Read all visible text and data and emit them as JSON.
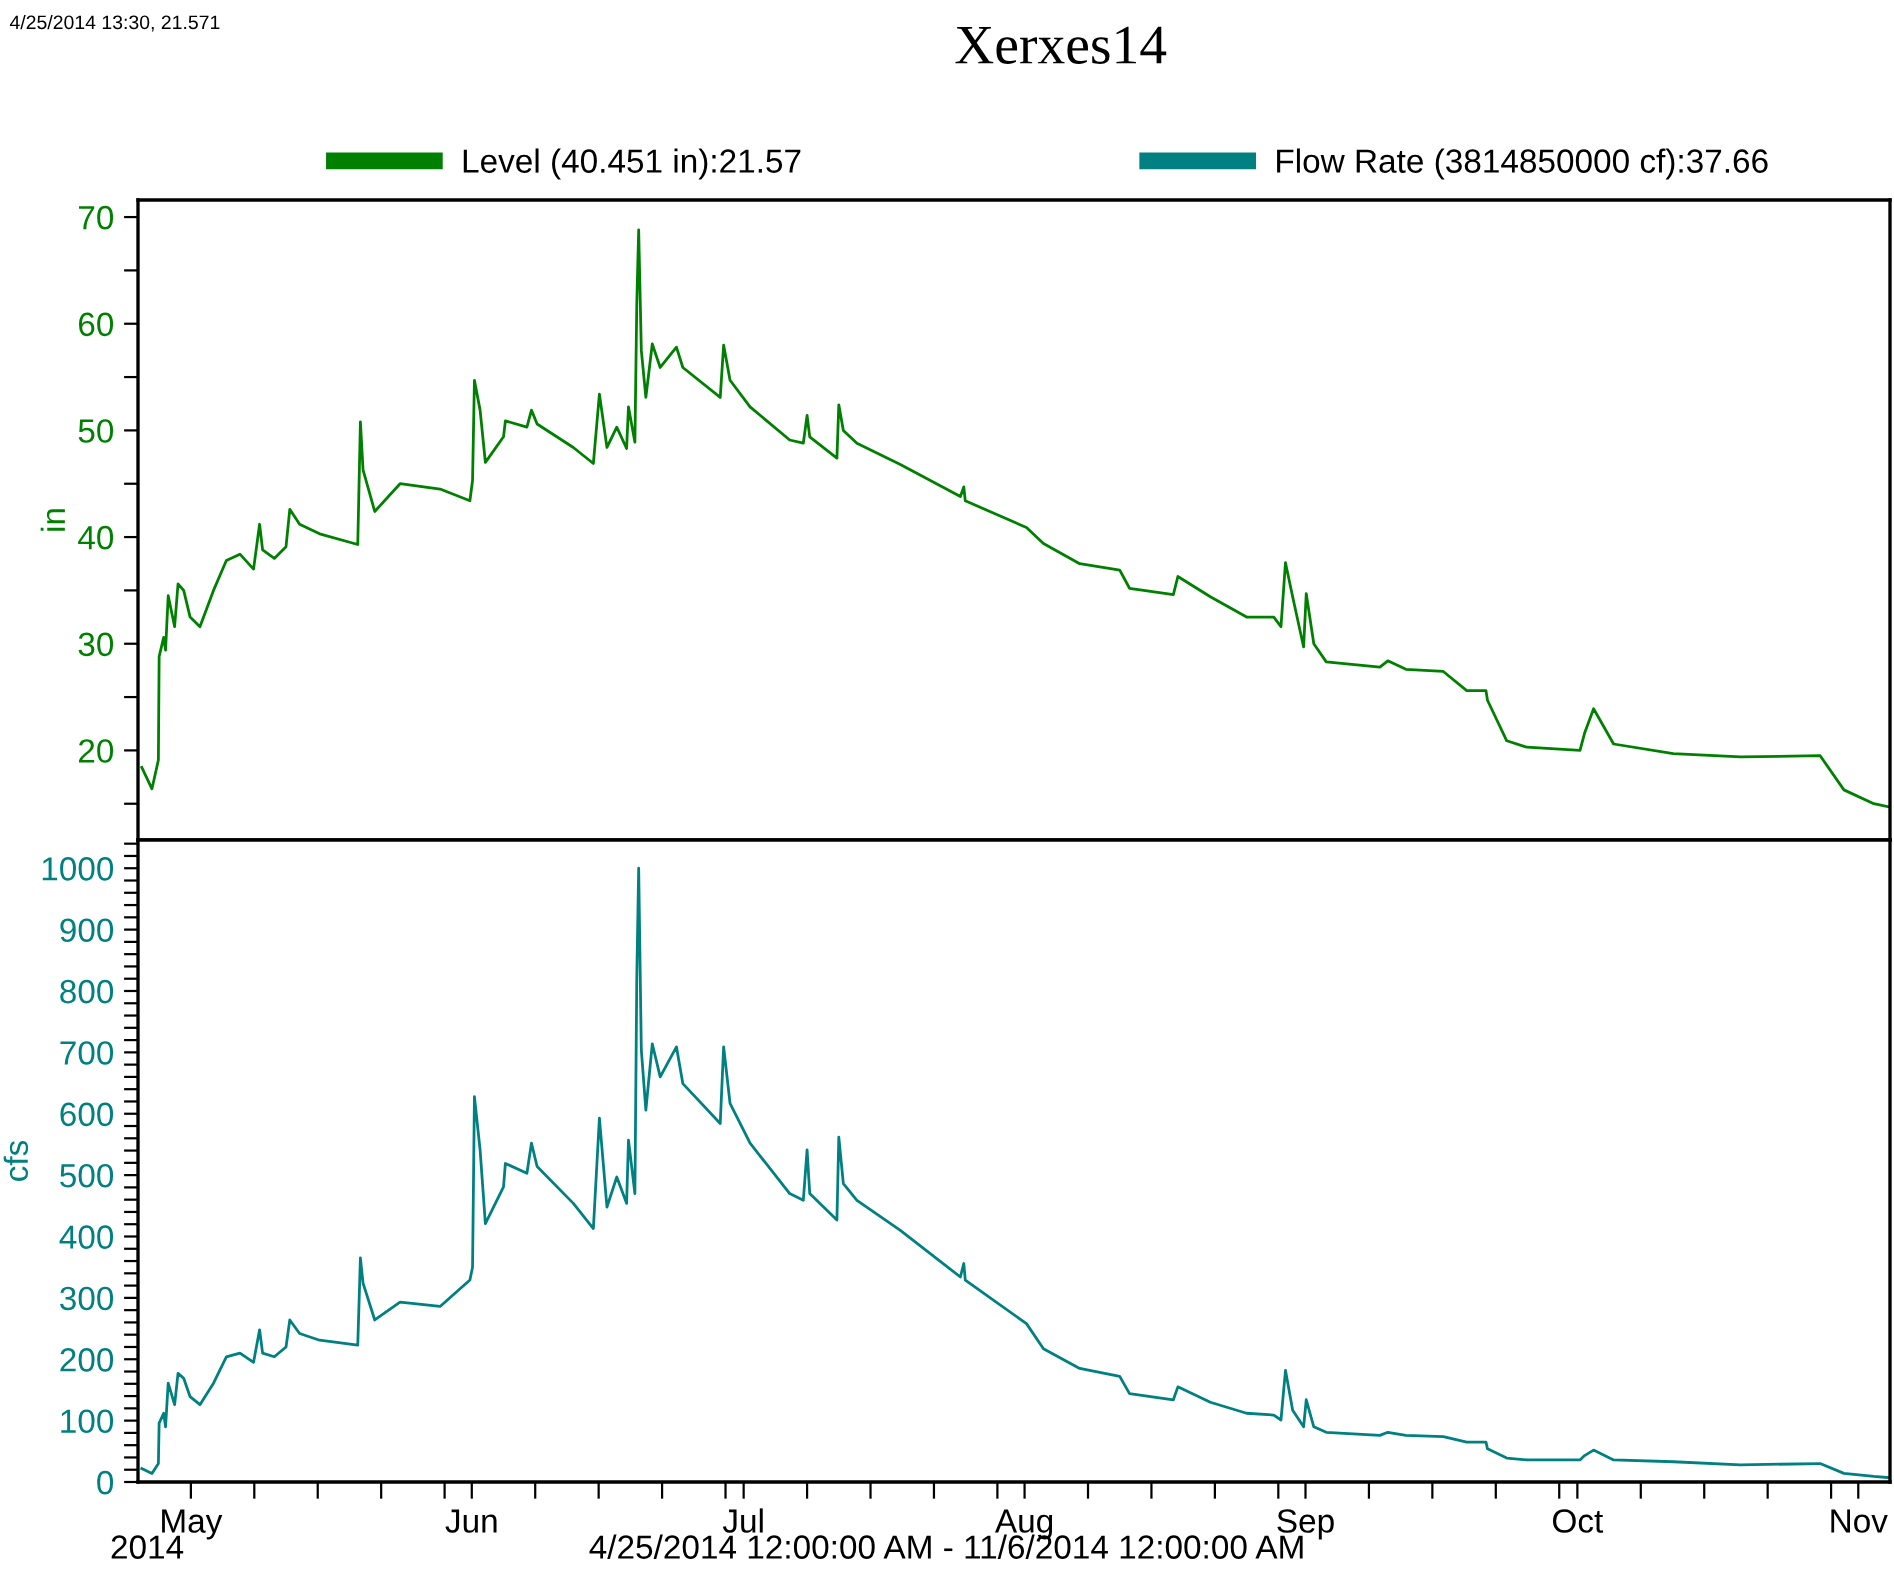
{
  "chart_data": [
    {
      "type": "line",
      "title": "Xerxes14",
      "ylabel": "in",
      "legend": "top",
      "tick_labels": "y",
      "annotations": [
        "4/25/2014 13:30, 21.571"
      ],
      "x": [
        "2014-04-25T14:00",
        "2014-04-26T17:00",
        "2014-04-27T10:00",
        "2014-04-27T12:00",
        "2014-04-28T00:00",
        "2014-04-28T05:00",
        "2014-04-28T12:00",
        "2014-04-29T05:00",
        "2014-04-29T14:00",
        "2014-04-30T05:00",
        "2014-04-30T22:00",
        "2014-05-02T00:00",
        "2014-05-03T12:00",
        "2014-05-04T22:00",
        "2014-05-06T10:00",
        "2014-05-07T22:00",
        "2014-05-08T14:00",
        "2014-05-08T22:00",
        "2014-05-10T05:00",
        "2014-05-11T12:00",
        "2014-05-11T22:00",
        "2014-05-13T00:00",
        "2014-05-15T05:00",
        "2014-05-19T10:00",
        "2014-05-19T17:00",
        "2014-05-20T00:00",
        "2014-05-21T07:00",
        "2014-05-24T02:00",
        "2014-05-28T12:00",
        "2014-05-31T19:00",
        "2014-06-01T02:00",
        "2014-06-01T07:00",
        "2014-06-01T22:00",
        "2014-06-02T12:00",
        "2014-06-04T12:00",
        "2014-06-04T17:00",
        "2014-06-07T02:00",
        "2014-06-07T14:00",
        "2014-06-08T05:00",
        "2014-06-12T05:00",
        "2014-06-14T10:00",
        "2014-06-15T02:00",
        "2014-06-15T22:00",
        "2014-06-17T00:00",
        "2014-06-18T02:00",
        "2014-06-18T07:00",
        "2014-06-19T00:00",
        "2014-06-19T05:00",
        "2014-06-19T10:00",
        "2014-06-19T17:00",
        "2014-06-20T05:00",
        "2014-06-20T22:00",
        "2014-06-21T19:00",
        "2014-06-23T14:00",
        "2014-06-24T07:00",
        "2014-06-28T10:00",
        "2014-06-28T19:00",
        "2014-06-29T12:00",
        "2014-07-01T17:00",
        "2014-07-06T02:00",
        "2014-07-07T14:00",
        "2014-07-08T00:00",
        "2014-07-08T07:00",
        "2014-07-11T07:00",
        "2014-07-11T12:00",
        "2014-07-12T00:00",
        "2014-07-13T12:00",
        "2014-07-18T07:00",
        "2014-07-24T22:00",
        "2014-07-25T07:00",
        "2014-07-25T11:00",
        "2014-08-01T05:00",
        "2014-08-03T02:00",
        "2014-08-07T02:00",
        "2014-08-11T12:00",
        "2014-08-12T14:00",
        "2014-08-17T10:00",
        "2014-08-17T22:00",
        "2014-08-21T12:00",
        "2014-08-25T12:00",
        "2014-08-28T12:00",
        "2014-08-29T07:00",
        "2014-08-29T19:00",
        "2014-08-30T14:00",
        "2014-08-31T19:00",
        "2014-09-01T02:00",
        "2014-09-01T22:00",
        "2014-09-03T07:00",
        "2014-09-09T05:00",
        "2014-09-10T02:00",
        "2014-09-12T02:00",
        "2014-09-16T05:00",
        "2014-09-18T19:00",
        "2014-09-20T22:00",
        "2014-09-21T02:00",
        "2014-09-23T05:00",
        "2014-09-25T10:00",
        "2014-10-01T07:00",
        "2014-10-01T19:00",
        "2014-10-02T19:00",
        "2014-10-05T00:00",
        "2014-10-11T14:00",
        "2014-10-19T00:00",
        "2014-10-27T19:00",
        "2014-10-30T10:00",
        "2014-11-02T17:00",
        "2014-11-04T10:00"
      ],
      "series": [
        {
          "name": "Level (40.451 in):21.57",
          "color": "#008000",
          "values": [
            18.4,
            16.4,
            19.1,
            28.8,
            30.6,
            29.4,
            34.5,
            31.6,
            35.6,
            35,
            32.5,
            31.6,
            35,
            37.8,
            38.4,
            37,
            41.2,
            38.8,
            38,
            39.1,
            42.6,
            41.2,
            40.3,
            39.3,
            50.8,
            46.3,
            42.4,
            45,
            44.5,
            43.4,
            45.3,
            54.7,
            51.9,
            47,
            49.4,
            50.9,
            50.3,
            51.9,
            50.6,
            48.4,
            46.9,
            53.4,
            48.4,
            50.3,
            48.3,
            52.2,
            48.9,
            61.9,
            68.8,
            57.5,
            53.1,
            58.1,
            55.9,
            57.8,
            55.9,
            53.1,
            58,
            54.7,
            52.2,
            49.1,
            48.8,
            51.4,
            49.4,
            47.4,
            52.4,
            50,
            48.8,
            46.8,
            43.8,
            44.7,
            43.4,
            40.9,
            39.4,
            37.5,
            36.9,
            35.2,
            34.6,
            36.3,
            34.4,
            32.5,
            32.5,
            31.6,
            37.6,
            34.4,
            29.7,
            34.7,
            30,
            28.3,
            27.8,
            28.4,
            27.6,
            27.4,
            25.6,
            25.6,
            24.7,
            20.9,
            20.3,
            20,
            21.6,
            23.9,
            20.6,
            19.7,
            19.4,
            19.5,
            16.3,
            15,
            14.7
          ]
        }
      ],
      "xlim": [
        "2014-04-25T04:00",
        "2014-11-04T12:00"
      ],
      "ylim": [
        11.6,
        71.6
      ],
      "yticks": [
        {
          "value": 15,
          "label": null
        },
        20,
        {
          "value": 25,
          "label": null
        },
        30,
        {
          "value": 35,
          "label": null
        },
        40,
        {
          "value": 45,
          "label": null
        },
        50,
        {
          "value": 55,
          "label": null
        },
        60,
        {
          "value": 65,
          "label": null
        },
        70
      ]
    },
    {
      "type": "line",
      "ylabel": "cfs",
      "legend": "top",
      "annotations": [
        "2014",
        "4/25/2014 12:00:00 AM - 11/6/2014 12:00:00 AM"
      ],
      "x": [
        "2014-04-25T14:00",
        "2014-04-26T17:00",
        "2014-04-27T10:00",
        "2014-04-27T12:00",
        "2014-04-28T00:00",
        "2014-04-28T05:00",
        "2014-04-28T12:00",
        "2014-04-29T05:00",
        "2014-04-29T14:00",
        "2014-04-30T05:00",
        "2014-04-30T22:00",
        "2014-05-02T00:00",
        "2014-05-03T12:00",
        "2014-05-04T22:00",
        "2014-05-06T10:00",
        "2014-05-07T22:00",
        "2014-05-08T14:00",
        "2014-05-08T22:00",
        "2014-05-10T05:00",
        "2014-05-11T12:00",
        "2014-05-11T22:00",
        "2014-05-13T00:00",
        "2014-05-15T05:00",
        "2014-05-19T10:00",
        "2014-05-19T17:00",
        "2014-05-20T00:00",
        "2014-05-21T07:00",
        "2014-05-24T02:00",
        "2014-05-28T12:00",
        "2014-05-31T19:00",
        "2014-06-01T02:00",
        "2014-06-01T07:00",
        "2014-06-01T22:00",
        "2014-06-02T12:00",
        "2014-06-04T12:00",
        "2014-06-04T17:00",
        "2014-06-07T02:00",
        "2014-06-07T14:00",
        "2014-06-08T05:00",
        "2014-06-12T05:00",
        "2014-06-14T10:00",
        "2014-06-15T02:00",
        "2014-06-15T22:00",
        "2014-06-17T00:00",
        "2014-06-18T02:00",
        "2014-06-18T07:00",
        "2014-06-19T00:00",
        "2014-06-19T05:00",
        "2014-06-19T10:00",
        "2014-06-19T17:00",
        "2014-06-20T05:00",
        "2014-06-20T22:00",
        "2014-06-21T19:00",
        "2014-06-23T14:00",
        "2014-06-24T07:00",
        "2014-06-28T10:00",
        "2014-06-28T19:00",
        "2014-06-29T12:00",
        "2014-07-01T17:00",
        "2014-07-06T02:00",
        "2014-07-07T14:00",
        "2014-07-08T00:00",
        "2014-07-08T07:00",
        "2014-07-11T07:00",
        "2014-07-11T12:00",
        "2014-07-12T00:00",
        "2014-07-13T12:00",
        "2014-07-18T07:00",
        "2014-07-24T22:00",
        "2014-07-25T07:00",
        "2014-07-25T11:00",
        "2014-08-01T05:00",
        "2014-08-03T02:00",
        "2014-08-07T02:00",
        "2014-08-11T12:00",
        "2014-08-12T14:00",
        "2014-08-17T10:00",
        "2014-08-17T22:00",
        "2014-08-21T12:00",
        "2014-08-25T12:00",
        "2014-08-28T12:00",
        "2014-08-29T07:00",
        "2014-08-29T19:00",
        "2014-08-30T14:00",
        "2014-08-31T19:00",
        "2014-09-01T02:00",
        "2014-09-01T22:00",
        "2014-09-03T07:00",
        "2014-09-09T05:00",
        "2014-09-10T02:00",
        "2014-09-12T02:00",
        "2014-09-16T05:00",
        "2014-09-18T19:00",
        "2014-09-20T22:00",
        "2014-09-21T02:00",
        "2014-09-23T05:00",
        "2014-09-25T10:00",
        "2014-10-01T07:00",
        "2014-10-01T19:00",
        "2014-10-02T19:00",
        "2014-10-05T00:00",
        "2014-10-11T14:00",
        "2014-10-19T00:00",
        "2014-10-27T19:00",
        "2014-10-30T10:00",
        "2014-11-02T17:00",
        "2014-11-04T10:00"
      ],
      "series": [
        {
          "name": "Flow Rate (3814850000 cf):37.66",
          "color": "#008080",
          "values": [
            22,
            14,
            30,
            96,
            112,
            90,
            161,
            126,
            177,
            169,
            139,
            126,
            161,
            204,
            210,
            195,
            248,
            210,
            204,
            220,
            264,
            242,
            231,
            223,
            365,
            324,
            264,
            293,
            286,
            329,
            350,
            628,
            541,
            421,
            481,
            519,
            503,
            552,
            514,
            454,
            413,
            593,
            448,
            497,
            454,
            557,
            470,
            823,
            1000,
            704,
            606,
            714,
            660,
            709,
            649,
            584,
            709,
            617,
            552,
            470,
            459,
            541,
            470,
            427,
            562,
            486,
            459,
            410,
            334,
            356,
            329,
            258,
            217,
            185,
            172,
            144,
            134,
            155,
            130,
            112,
            109,
            101,
            182,
            117,
            90,
            134,
            90,
            81,
            76,
            81,
            76,
            74,
            65,
            65,
            54,
            39,
            36,
            36,
            43,
            52,
            36,
            33,
            28,
            30,
            14,
            9,
            7
          ]
        }
      ],
      "xlim": [
        "2014-04-25T04:00",
        "2014-11-04T12:00"
      ],
      "xticks": [
        {
          "value": "2014-05-01",
          "label": "May"
        },
        {
          "value": "2014-05-08",
          "label": null
        },
        {
          "value": "2014-05-15",
          "label": null
        },
        {
          "value": "2014-05-22",
          "label": null
        },
        {
          "value": "2014-05-29",
          "label": null
        },
        {
          "value": "2014-06-01",
          "label": "Jun"
        },
        {
          "value": "2014-06-08",
          "label": null
        },
        {
          "value": "2014-06-15",
          "label": null
        },
        {
          "value": "2014-06-22",
          "label": null
        },
        {
          "value": "2014-06-29",
          "label": null
        },
        {
          "value": "2014-07-01",
          "label": "Jul"
        },
        {
          "value": "2014-07-08",
          "label": null
        },
        {
          "value": "2014-07-15",
          "label": null
        },
        {
          "value": "2014-07-22",
          "label": null
        },
        {
          "value": "2014-07-29",
          "label": null
        },
        {
          "value": "2014-08-01",
          "label": "Aug"
        },
        {
          "value": "2014-08-08",
          "label": null
        },
        {
          "value": "2014-08-15",
          "label": null
        },
        {
          "value": "2014-08-22",
          "label": null
        },
        {
          "value": "2014-08-29",
          "label": null
        },
        {
          "value": "2014-09-01",
          "label": "Sep"
        },
        {
          "value": "2014-09-08",
          "label": null
        },
        {
          "value": "2014-09-15",
          "label": null
        },
        {
          "value": "2014-09-22",
          "label": null
        },
        {
          "value": "2014-09-29",
          "label": null
        },
        {
          "value": "2014-10-01",
          "label": "Oct"
        },
        {
          "value": "2014-10-08",
          "label": null
        },
        {
          "value": "2014-10-15",
          "label": null
        },
        {
          "value": "2014-10-22",
          "label": null
        },
        {
          "value": "2014-10-29",
          "label": null
        },
        {
          "value": "2014-11-01",
          "label": "Nov"
        }
      ],
      "ylim": [
        0,
        1046
      ],
      "yticks": [
        0,
        {
          "value": 20,
          "label": null
        },
        {
          "value": 40,
          "label": null
        },
        {
          "value": 60,
          "label": null
        },
        {
          "value": 80,
          "label": null
        },
        100,
        {
          "value": 120,
          "label": null
        },
        {
          "value": 140,
          "label": null
        },
        {
          "value": 160,
          "label": null
        },
        {
          "value": 180,
          "label": null
        },
        200,
        {
          "value": 220,
          "label": null
        },
        {
          "value": 240,
          "label": null
        },
        {
          "value": 260,
          "label": null
        },
        {
          "value": 280,
          "label": null
        },
        300,
        {
          "value": 320,
          "label": null
        },
        {
          "value": 340,
          "label": null
        },
        {
          "value": 360,
          "label": null
        },
        {
          "value": 380,
          "label": null
        },
        400,
        {
          "value": 420,
          "label": null
        },
        {
          "value": 440,
          "label": null
        },
        {
          "value": 460,
          "label": null
        },
        {
          "value": 480,
          "label": null
        },
        500,
        {
          "value": 520,
          "label": null
        },
        {
          "value": 540,
          "label": null
        },
        {
          "value": 560,
          "label": null
        },
        {
          "value": 580,
          "label": null
        },
        600,
        {
          "value": 620,
          "label": null
        },
        {
          "value": 640,
          "label": null
        },
        {
          "value": 660,
          "label": null
        },
        {
          "value": 680,
          "label": null
        },
        700,
        {
          "value": 720,
          "label": null
        },
        {
          "value": 740,
          "label": null
        },
        {
          "value": 760,
          "label": null
        },
        {
          "value": 780,
          "label": null
        },
        800,
        {
          "value": 820,
          "label": null
        },
        {
          "value": 840,
          "label": null
        },
        {
          "value": 860,
          "label": null
        },
        {
          "value": 880,
          "label": null
        },
        900,
        {
          "value": 920,
          "label": null
        },
        {
          "value": 940,
          "label": null
        },
        {
          "value": 960,
          "label": null
        },
        {
          "value": 980,
          "label": null
        },
        1000,
        {
          "value": 1020,
          "label": null
        },
        {
          "value": 1040,
          "label": null
        }
      ]
    }
  ]
}
